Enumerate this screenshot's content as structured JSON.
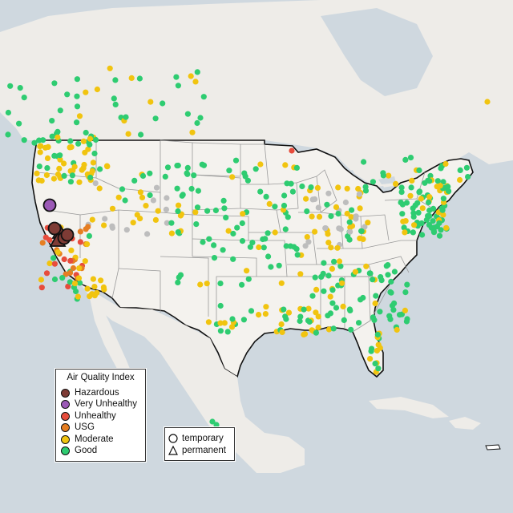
{
  "legend": {
    "title": "Air Quality Index",
    "categories": [
      {
        "label": "Hazardous",
        "color": "#7e3b35"
      },
      {
        "label": "Very Unhealthy",
        "color": "#9b59b6"
      },
      {
        "label": "Unhealthy",
        "color": "#e74c3c"
      },
      {
        "label": "USG",
        "color": "#e67e22"
      },
      {
        "label": "Moderate",
        "color": "#f1c40f"
      },
      {
        "label": "Good",
        "color": "#2ecc71"
      }
    ],
    "no_data_color": "#bdbdbd"
  },
  "type_legend": {
    "temporary": "temporary",
    "permanent": "permanent"
  },
  "colors": {
    "land": "#f2f0ec",
    "water": "#cfd8df",
    "us_border": "#111111",
    "state_border": "#9a9a9a"
  }
}
